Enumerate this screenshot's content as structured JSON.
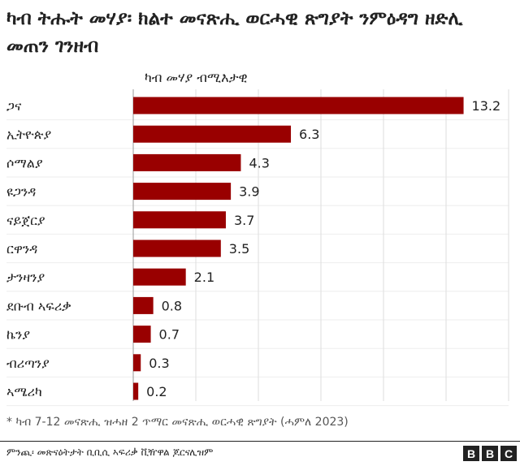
{
  "header": {
    "title": "ካብ ትሑት መሃያ፡ ክልተ መናጽሒ ወርሓዊ ጽግያት ንምዕዳግ ዘድሊ መጠን ገንዘብ",
    "subtitle": "ካብ መሃያ ብሚእታዊ"
  },
  "chart_data": {
    "type": "bar",
    "orientation": "horizontal",
    "categories": [
      "ጋና",
      "ኢትዮጵያ",
      "ሶማልያ",
      "ዩጋንዳ",
      "ናይጀርያ",
      "ርዋንዳ",
      "ታንዛንያ",
      "ደቡብ ኣፍሪቃ",
      "ኬንያ",
      "ብሪጣንያ",
      "ኣሜሪካ"
    ],
    "values": [
      13.2,
      6.3,
      4.3,
      3.9,
      3.7,
      3.5,
      2.1,
      0.8,
      0.7,
      0.3,
      0.2
    ],
    "value_labels": [
      "13.2",
      "6.3",
      "4.3",
      "3.9",
      "3.7",
      "3.5",
      "2.1",
      "0.8",
      "0.7",
      "0.3",
      "0.2"
    ],
    "xlim": [
      0,
      15
    ],
    "grid": true,
    "bar_color": "#990000",
    "grid_color": "#dddddd"
  },
  "footer": {
    "footnote": "* ካብ 7-12 መናጽሒ ዝሓዘ 2 ጥማር መናጽሒ ወርሓዊ ጽግያት (ሓምለ 2023)",
    "source": "ምንጪ፡ መጽናዕትታት ቢቢሲ ኣፍሪቃ ቪዥዋል ጆርናሊዝም",
    "logo_letters": [
      "B",
      "B",
      "C"
    ]
  }
}
